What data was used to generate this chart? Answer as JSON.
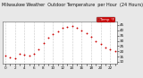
{
  "title": "Milwaukee Weather  Outdoor Temperature  per Hour  (24 Hours)",
  "title_fontsize": 3.5,
  "title_color": "#111111",
  "background_color": "#e8e8e8",
  "plot_bg_color": "#ffffff",
  "hours": [
    0,
    1,
    2,
    3,
    4,
    5,
    6,
    7,
    8,
    9,
    10,
    11,
    12,
    13,
    14,
    15,
    16,
    17,
    18,
    19,
    20,
    21,
    22,
    23
  ],
  "temps": [
    16,
    14,
    13,
    18,
    17,
    16,
    18,
    22,
    28,
    33,
    36,
    39,
    42,
    43,
    44,
    42,
    40,
    37,
    34,
    30,
    27,
    24,
    22,
    20
  ],
  "dot_color": "#cc0000",
  "legend_bg": "#cc0000",
  "legend_label": "Temp °F",
  "ylim_min": 8,
  "ylim_max": 48,
  "ytick_values": [
    10,
    15,
    20,
    25,
    30,
    35,
    40,
    45
  ],
  "grid_color": "#999999",
  "grid_linestyle": ":",
  "grid_linewidth": 0.4,
  "marker_size": 1.8,
  "tick_fontsize": 3.0,
  "xtick_every": 1
}
